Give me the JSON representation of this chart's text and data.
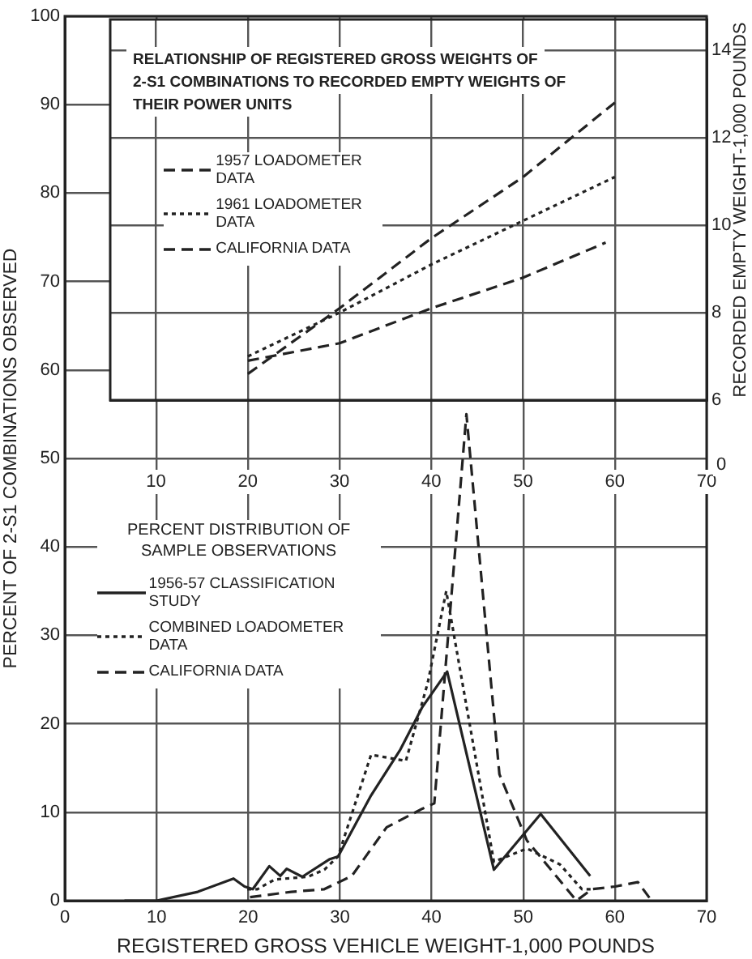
{
  "chart_data": [
    {
      "type": "line",
      "title": "RELATIONSHIP OF REGISTERED GROSS WEIGHTS OF 2-S1 COMBINATIONS TO RECORDED EMPTY WEIGHTS OF THEIR POWER UNITS",
      "ylabel": "RECORDED EMPTY WEIGHT-1,000 POUNDS",
      "xlim": [
        5,
        70
      ],
      "xticks": [
        10,
        20,
        30,
        40,
        50,
        60,
        70
      ],
      "ylim": [
        6,
        14.7
      ],
      "yticks": [
        6,
        8,
        10,
        12,
        14
      ],
      "annotations": [
        "0"
      ],
      "grid": true,
      "legend": "left",
      "marker": "none",
      "series": [
        {
          "name": "1957 LOADOMETER DATA",
          "color": "#222222",
          "line_style": "dashed",
          "x": [
            20,
            30,
            40,
            50,
            59
          ],
          "values": [
            6.9,
            7.3,
            8.1,
            8.8,
            9.6
          ]
        },
        {
          "name": "1961 LOADOMETER DATA",
          "color": "#222222",
          "line_style": "dotted",
          "x": [
            20,
            30,
            40,
            50,
            60
          ],
          "values": [
            7.0,
            8.0,
            9.1,
            10.1,
            11.1
          ]
        },
        {
          "name": "CALIFORNIA DATA",
          "color": "#222222",
          "line_style": "dashed",
          "x": [
            20,
            30,
            40,
            50,
            60
          ],
          "values": [
            6.6,
            8.1,
            9.7,
            11.1,
            12.8
          ]
        }
      ]
    },
    {
      "type": "line",
      "xlabel": "REGISTERED GROSS VEHICLE WEIGHT-1,000 POUNDS",
      "ylabel": "PERCENT OF 2-S1 COMBINATIONS OBSERVED",
      "legend_title": "PERCENT DISTRIBUTION OF SAMPLE OBSERVATIONS",
      "xlim": [
        0,
        70
      ],
      "xticks": [
        0,
        10,
        20,
        30,
        40,
        50,
        60,
        70
      ],
      "ylim": [
        0,
        100
      ],
      "yticks": [
        0,
        10,
        20,
        30,
        40,
        50,
        60,
        70,
        80,
        90,
        100
      ],
      "grid": true,
      "legend": "left",
      "marker": "none",
      "series": [
        {
          "name": "1956-57 CLASSIFICATION STUDY",
          "color": "#222222",
          "line_style": "solid",
          "x": [
            6.5,
            10,
            14.5,
            18.4,
            19.6,
            20.5,
            22.3,
            23.5,
            24.2,
            25.9,
            28.9,
            29.8,
            33.4,
            36.6,
            39,
            41.7,
            46.8,
            51.9,
            57.3
          ],
          "values": [
            0,
            0,
            1,
            2.5,
            1.6,
            1.3,
            3.9,
            2.8,
            3.6,
            2.7,
            4.7,
            5,
            11.9,
            17.1,
            21.9,
            25.9,
            3.5,
            9.8,
            2.8
          ]
        },
        {
          "name": "COMBINED LOADOMETER DATA",
          "color": "#222222",
          "line_style": "dotted",
          "x": [
            19.9,
            21,
            22.9,
            26.5,
            28.3,
            29.8,
            33.4,
            37.2,
            39.6,
            41.6,
            46.8,
            50.4,
            54,
            56.4,
            57.6
          ],
          "values": [
            1.3,
            1.3,
            2.4,
            2.7,
            3.5,
            5,
            16.5,
            15.8,
            24.7,
            35,
            4.4,
            5.9,
            4.1,
            1.3,
            1.3
          ]
        },
        {
          "name": "CALIFORNIA DATA",
          "color": "#222222",
          "line_style": "dashed",
          "x": [
            20.2,
            24.7,
            28.3,
            31.3,
            35.1,
            39,
            40.3,
            43.8,
            47.4,
            50.4,
            55.8,
            57.5,
            60,
            62.5,
            64
          ],
          "values": [
            0.4,
            1,
            1.3,
            2.8,
            8.3,
            10.4,
            11,
            55,
            14.3,
            6.8,
            0,
            1.3,
            1.6,
            2.1,
            0
          ]
        }
      ]
    }
  ]
}
